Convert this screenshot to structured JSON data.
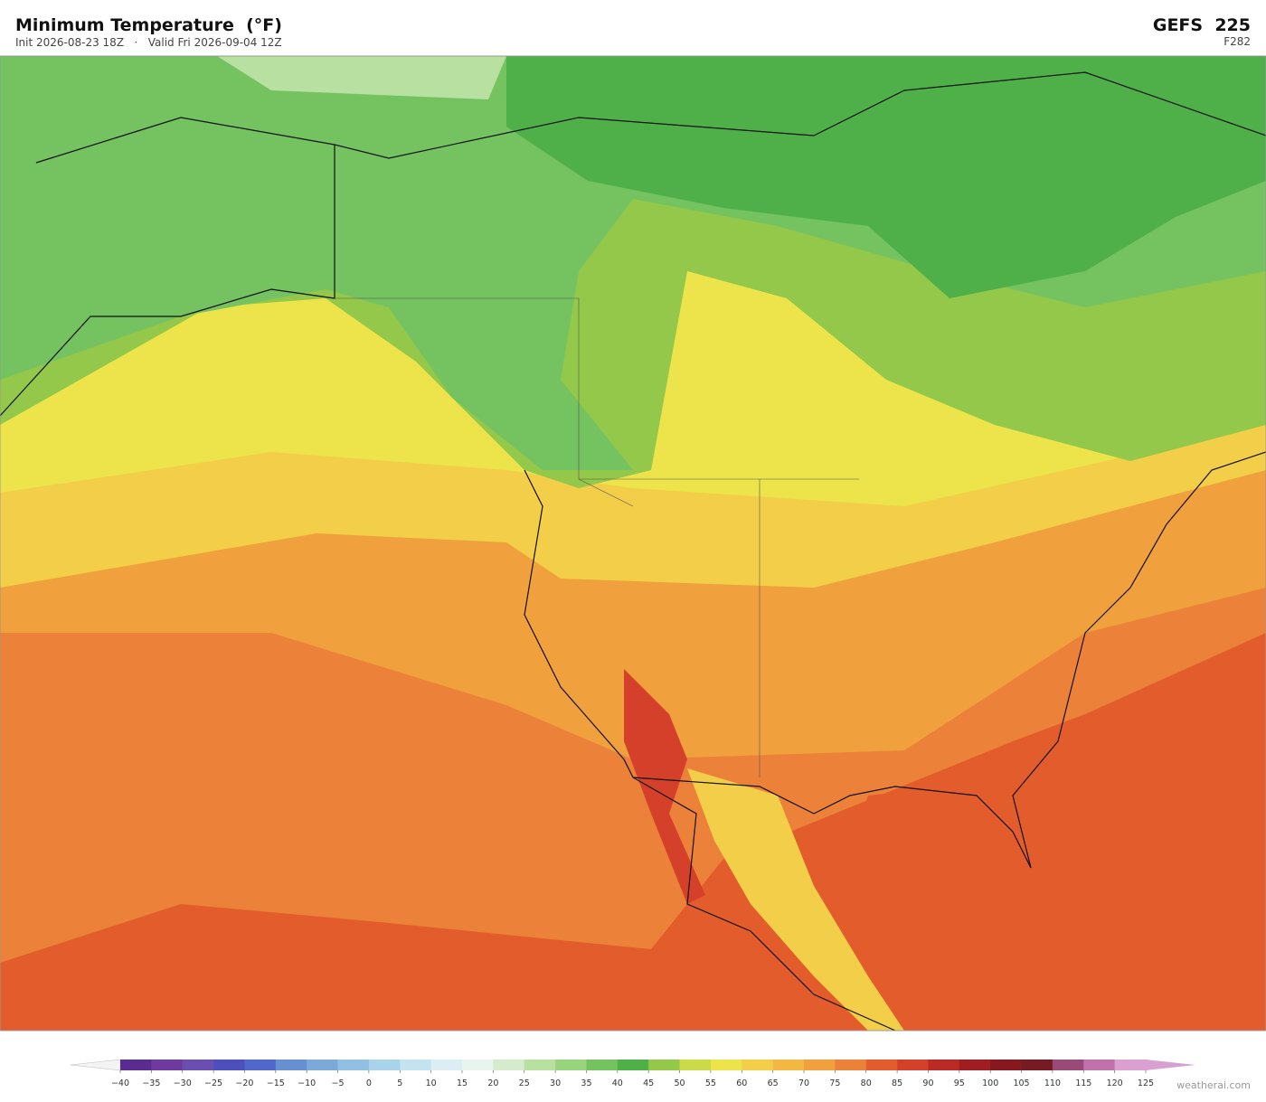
{
  "header": {
    "title": "Minimum Temperature  (°F)",
    "subtitle": "Init 2026-08-23 18Z   ·   Valid Fri 2026-09-04 12Z",
    "model": "GEFS  225",
    "forecast_hour": "F282"
  },
  "colorbar": {
    "ticks": [
      {
        "value": -40,
        "label": "−40"
      },
      {
        "value": -35,
        "label": "−35"
      },
      {
        "value": -30,
        "label": "−30"
      },
      {
        "value": -25,
        "label": "−25"
      },
      {
        "value": -20,
        "label": "−20"
      },
      {
        "value": -15,
        "label": "−15"
      },
      {
        "value": -10,
        "label": "−10"
      },
      {
        "value": -5,
        "label": "−5"
      },
      0,
      5,
      10,
      15,
      20,
      25,
      30,
      35,
      40,
      45,
      50,
      55,
      60,
      65,
      70,
      75,
      80,
      85,
      90,
      95,
      100,
      105,
      110,
      115,
      120,
      125
    ],
    "colors": [
      "#5b2c8f",
      "#6e3a9f",
      "#6a4fb0",
      "#4d4fbd",
      "#4f68c9",
      "#6690d0",
      "#7ba9d8",
      "#92c0e2",
      "#a9d3ea",
      "#c2e3ef",
      "#dbeef3",
      "#e8f5ee",
      "#d5ebcc",
      "#b8e0a0",
      "#98d47e",
      "#74c260",
      "#4fb04a",
      "#93c84a",
      "#c9dc48",
      "#ece44a",
      "#f3ce48",
      "#f3b743",
      "#f0a03d",
      "#ec823a",
      "#e35c2c",
      "#d4402a",
      "#bb2a24",
      "#a01e22",
      "#861820",
      "#761a24",
      "#9a4a78",
      "#bf72ac",
      "#dba0cf"
    ],
    "under_color": "#f4f4f4",
    "over_color": "#d8a0d0"
  },
  "watermark": "weatherai.com"
}
